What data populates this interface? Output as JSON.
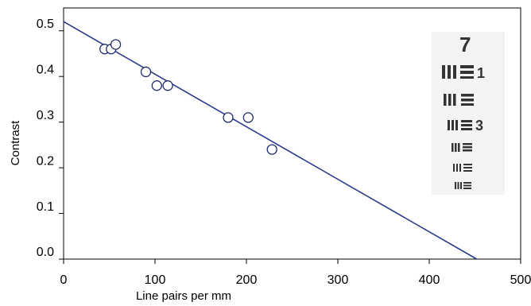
{
  "chart_data": {
    "type": "scatter",
    "xlabel": "Line pairs per mm",
    "ylabel": "Contrast",
    "xlim": [
      0,
      500
    ],
    "ylim": [
      0,
      0.55
    ],
    "xticks": [
      0,
      100,
      200,
      300,
      400,
      500
    ],
    "yticks": [
      {
        "value": 0,
        "label": "0.0"
      },
      0.1,
      0.2,
      0.3,
      0.4,
      0.5
    ],
    "points": {
      "x": [
        45,
        52,
        57,
        90,
        102,
        114,
        180,
        202,
        228
      ],
      "values": [
        0.46,
        0.46,
        0.47,
        0.41,
        0.38,
        0.38,
        0.31,
        0.31,
        0.24
      ],
      "color": "#1f2a6e"
    },
    "fit_line": {
      "x": [
        0,
        452
      ],
      "values": [
        0.52,
        0
      ],
      "color": "#2b3a8c"
    },
    "inset_labels": [
      "7",
      "1",
      "3"
    ]
  }
}
